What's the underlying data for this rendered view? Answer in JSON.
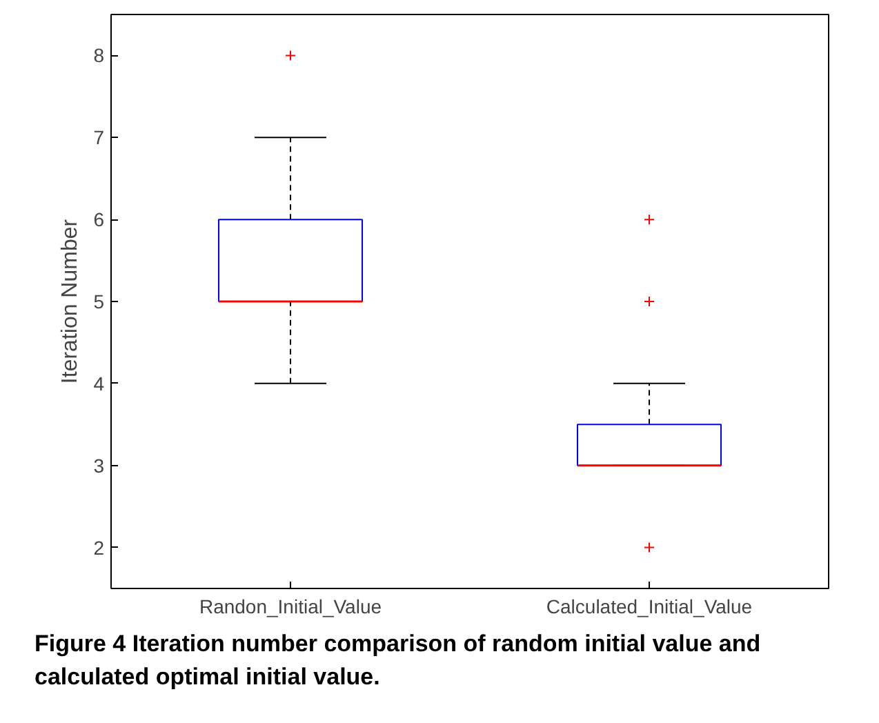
{
  "chart_data": {
    "type": "box",
    "categories": [
      "Randon_Initial_Value",
      "Calculated_Initial_Value"
    ],
    "ylabel": "Iteration Number",
    "annotations": [
      "Figure 4 Iteration number comparison of random initial value and calculated optimal initial value."
    ],
    "ylim": [
      1.5,
      8.5
    ],
    "yticks": [
      2,
      3,
      4,
      5,
      6,
      7,
      8
    ],
    "grid": false,
    "marker": "cross",
    "series": [
      {
        "color": "#0000ff",
        "boxes": [
          {
            "low": 4,
            "q1": 5,
            "median": 5,
            "q3": 6,
            "high": 7,
            "outliers": [
              8
            ]
          },
          {
            "low": 3,
            "q1": 3,
            "median": 3,
            "q3": 3.5,
            "high": 4,
            "outliers": [
              2,
              5,
              6
            ]
          }
        ]
      }
    ]
  }
}
